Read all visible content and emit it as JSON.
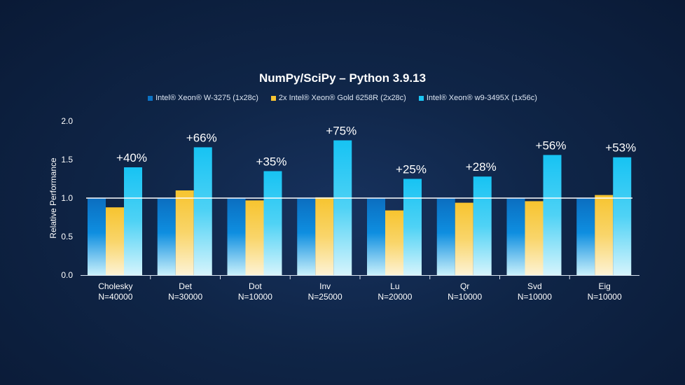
{
  "chart_data": {
    "type": "bar",
    "title": "NumPy/SciPy – Python 3.9.13",
    "ylabel": "Relative Performance",
    "xlabel": "",
    "ylim": [
      0,
      2.0
    ],
    "yticks": [
      "0.0",
      "0.5",
      "1.0",
      "1.5",
      "2.0"
    ],
    "baseline": 1.0,
    "legend_position": "top",
    "categories": [
      {
        "name": "Cholesky",
        "n": "N=40000"
      },
      {
        "name": "Det",
        "n": "N=30000"
      },
      {
        "name": "Dot",
        "n": "N=10000"
      },
      {
        "name": "Inv",
        "n": "N=25000"
      },
      {
        "name": "Lu",
        "n": "N=20000"
      },
      {
        "name": "Qr",
        "n": "N=10000"
      },
      {
        "name": "Svd",
        "n": "N=10000"
      },
      {
        "name": "Eig",
        "n": "N=10000"
      }
    ],
    "series": [
      {
        "name": "Intel® Xeon® W-3275 (1x28c)",
        "color": "#0b72c4",
        "values": [
          1.0,
          1.0,
          1.0,
          1.0,
          1.0,
          1.0,
          1.0,
          1.0
        ]
      },
      {
        "name": "2x Intel® Xeon® Gold 6258R (2x28c)",
        "color": "#f7c432",
        "values": [
          0.88,
          1.1,
          0.97,
          1.01,
          0.84,
          0.94,
          0.96,
          1.04
        ]
      },
      {
        "name": "Intel® Xeon® w9-3495X (1x56c)",
        "color": "#1cc6f3",
        "values": [
          1.4,
          1.66,
          1.35,
          1.75,
          1.25,
          1.28,
          1.56,
          1.53
        ]
      }
    ],
    "annotations": [
      "+40%",
      "+66%",
      "+35%",
      "+75%",
      "+25%",
      "+28%",
      "+56%",
      "+53%"
    ]
  }
}
